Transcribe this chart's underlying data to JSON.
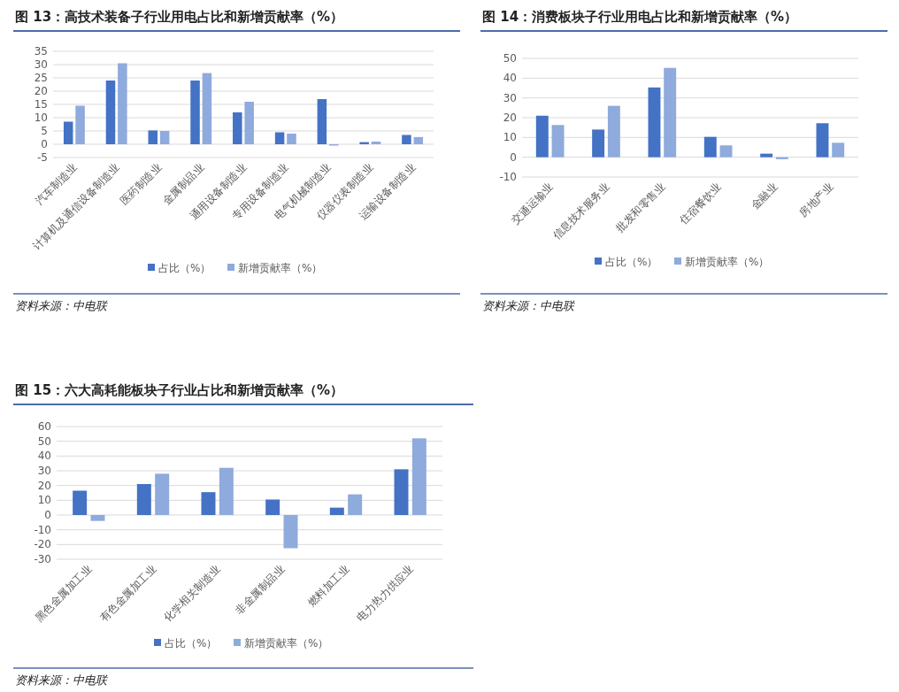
{
  "chart_data": [
    {
      "type": "bar",
      "title": "图 13：高技术装备子行业用电占比和新增贡献率（%）",
      "categories": [
        "汽车制造业",
        "计算机及通信设备制造业",
        "医药制造业",
        "金属制品业",
        "通用设备制造业",
        "专用设备制造业",
        "电气机械制造业",
        "仪器仪表制造业",
        "运输设备制造业"
      ],
      "series": [
        {
          "name": "占比（%）",
          "color": "#4472c4",
          "values": [
            8.5,
            24,
            5.2,
            24,
            12,
            4.5,
            17,
            0.8,
            3.5
          ]
        },
        {
          "name": "新增贡献率（%）",
          "color": "#8faadc",
          "values": [
            14.5,
            30.5,
            5,
            26.8,
            16,
            4,
            -0.5,
            1,
            2.7
          ]
        }
      ],
      "ylim": [
        -5,
        35
      ],
      "yticks": [
        -5,
        0,
        5,
        10,
        15,
        20,
        25,
        30,
        35
      ],
      "grid": "y",
      "legend": "bottom",
      "annotations": [
        "资料来源：中电联"
      ]
    },
    {
      "type": "bar",
      "title": "图 14：消费板块子行业用电占比和新增贡献率（%）",
      "categories": [
        "交通运输业",
        "信息技术服务业",
        "批发和零售业",
        "住宿餐饮业",
        "金融业",
        "房地产业"
      ],
      "series": [
        {
          "name": "占比（%）",
          "color": "#4472c4",
          "values": [
            21,
            14,
            35.3,
            10.3,
            1.8,
            17.2
          ]
        },
        {
          "name": "新增贡献率（%）",
          "color": "#8faadc",
          "values": [
            16.3,
            26,
            45.2,
            6,
            -1,
            7.3
          ]
        }
      ],
      "ylim": [
        -10,
        50
      ],
      "yticks": [
        -10,
        0,
        10,
        20,
        30,
        40,
        50
      ],
      "grid": "y",
      "legend": "bottom",
      "annotations": [
        "资料来源：中电联"
      ]
    },
    {
      "type": "bar",
      "title": "图 15：六大高耗能板块子行业占比和新增贡献率（%）",
      "categories": [
        "黑色金属加工业",
        "有色金属加工业",
        "化学相关制造业",
        "非金属制品业",
        "燃料加工业",
        "电力热力供应业"
      ],
      "series": [
        {
          "name": "占比（%）",
          "color": "#4472c4",
          "values": [
            16.5,
            21,
            15.5,
            10.5,
            5,
            31
          ]
        },
        {
          "name": "新增贡献率（%）",
          "color": "#8faadc",
          "values": [
            -4,
            28,
            32,
            -22.5,
            14,
            52
          ]
        }
      ],
      "ylim": [
        -30,
        60
      ],
      "yticks": [
        -30,
        -20,
        -10,
        0,
        10,
        20,
        30,
        40,
        50,
        60
      ],
      "grid": "y",
      "legend": "bottom",
      "annotations": [
        "资料来源：中电联"
      ]
    }
  ]
}
